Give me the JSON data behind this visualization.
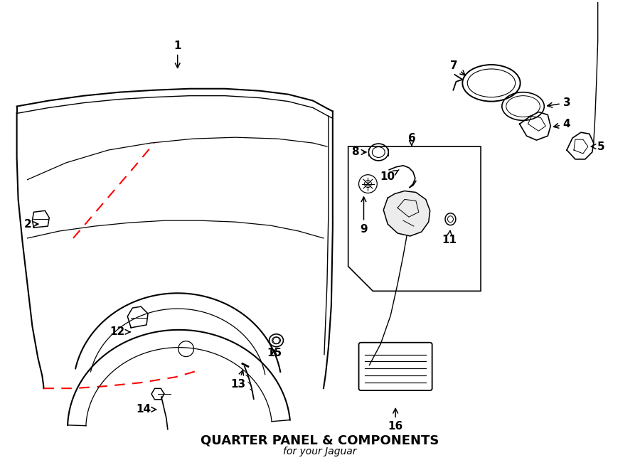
{
  "title": "QUARTER PANEL & COMPONENTS",
  "subtitle": "for your Jaguar",
  "bg_color": "#ffffff",
  "line_color": "#000000",
  "red_dash_color": "#ff0000",
  "label_fontsize": 11,
  "title_fontsize": 13
}
